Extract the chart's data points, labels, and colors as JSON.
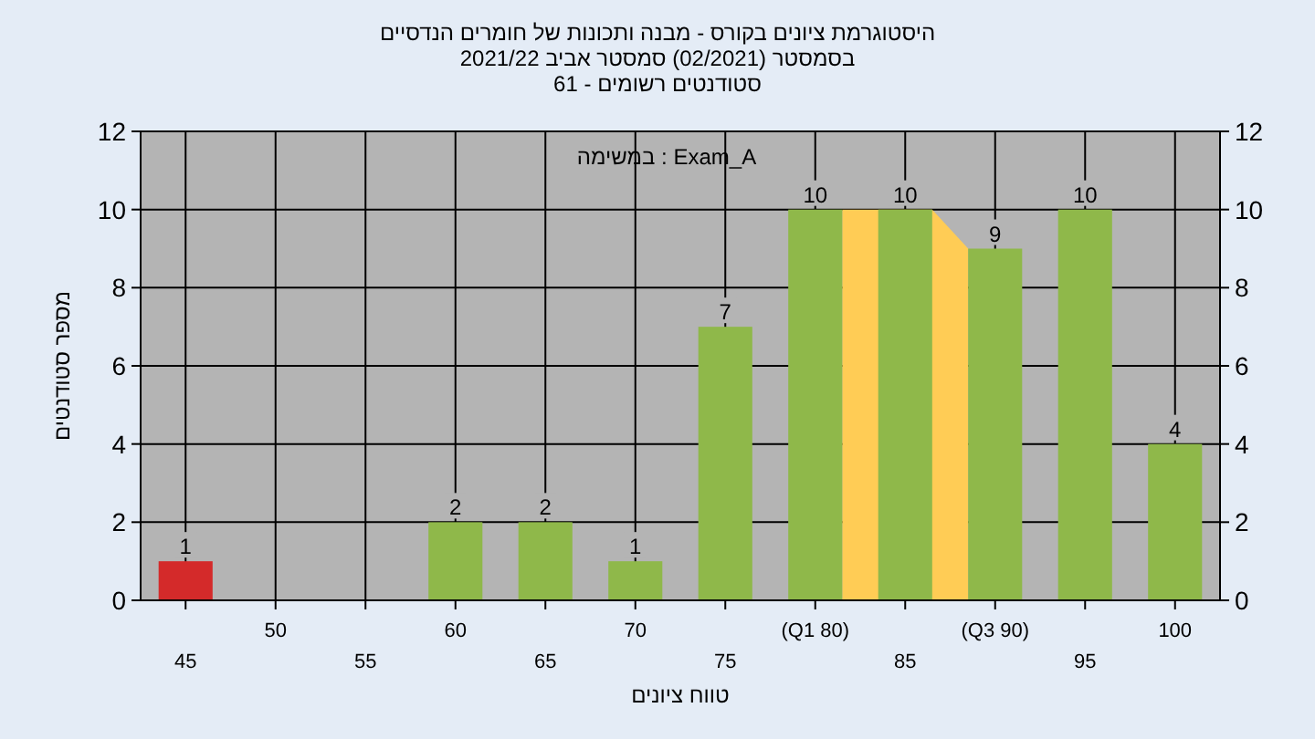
{
  "chart_data": {
    "type": "bar",
    "title": "היסטוגרמת ציונים בקורס - מבנה ותכונות של חומרים הנדסיים",
    "subtitle": "בסמסטר  (02/2021)  סמסטר אביב 2021/22\nסטודנטים רשומים - 61",
    "xlabel": "טווח ציונים",
    "ylabel": "מספר סטודנטים",
    "annotations": [
      "במשימה : Exam_A"
    ],
    "categories": [
      "45",
      "50",
      "55",
      "60",
      "65",
      "70",
      "75",
      "(Q1 80)",
      "85",
      "(Q3 90)",
      "95",
      "100"
    ],
    "values": [
      1,
      0,
      0,
      2,
      2,
      1,
      7,
      10,
      10,
      9,
      10,
      4
    ],
    "value_labels": [
      "1",
      null,
      null,
      "2",
      "2",
      "1",
      "7",
      "10",
      "10",
      "9",
      "10",
      "4"
    ],
    "colors": [
      "#d42a2a",
      "#8fb84a",
      "#8fb84a",
      "#8fb84a",
      "#8fb84a",
      "#8fb84a",
      "#8fb84a",
      "#8fb84a",
      "#8fb84a",
      "#8fb84a",
      "#8fb84a",
      "#8fb84a"
    ],
    "ylim": [
      0,
      12
    ],
    "yticks": [
      0,
      2,
      4,
      6,
      8,
      10,
      12
    ],
    "y2lim": [
      0,
      12
    ],
    "y2ticks": [
      0,
      2,
      4,
      6,
      8,
      10,
      12
    ],
    "bands": [
      {
        "axis": "x",
        "from": "(Q1 80)",
        "to": "(Q3 90)",
        "color": "#ffcc55"
      }
    ],
    "grid": true
  }
}
